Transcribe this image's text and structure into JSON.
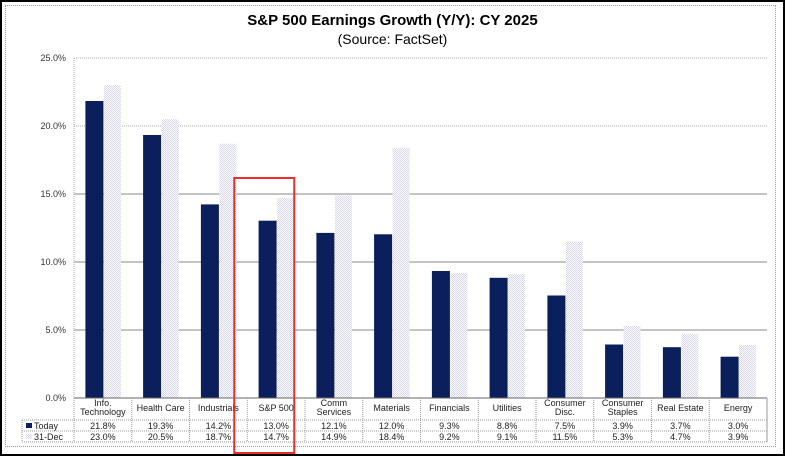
{
  "chart_data": {
    "type": "bar",
    "title": "S&P 500 Earnings Growth (Y/Y): CY 2025",
    "subtitle": "(Source: FactSet)",
    "xlabel": "",
    "ylabel": "",
    "ylim": [
      0,
      25
    ],
    "yticks": [
      "0.0%",
      "5.0%",
      "10.0%",
      "15.0%",
      "20.0%",
      "25.0%"
    ],
    "ytick_values": [
      0,
      5,
      10,
      15,
      20,
      25
    ],
    "grid": true,
    "legend_placement": "data-table-left",
    "categories": [
      [
        "Info.",
        "Technology"
      ],
      [
        "Health Care"
      ],
      [
        "Industrials"
      ],
      [
        "S&P 500"
      ],
      [
        "Comm",
        "Services"
      ],
      [
        "Materials"
      ],
      [
        "Financials"
      ],
      [
        "Utilities"
      ],
      [
        "Consumer",
        "Disc."
      ],
      [
        "Consumer",
        "Staples"
      ],
      [
        "Real Estate"
      ],
      [
        "Energy"
      ]
    ],
    "series": [
      {
        "name": "Today",
        "color": "#0a1f5c",
        "values": [
          21.8,
          19.3,
          14.2,
          13.0,
          12.1,
          12.0,
          9.3,
          8.8,
          7.5,
          3.9,
          3.7,
          3.0
        ],
        "labels": [
          "21.8%",
          "19.3%",
          "14.2%",
          "13.0%",
          "12.1%",
          "12.0%",
          "9.3%",
          "8.8%",
          "7.5%",
          "3.9%",
          "3.7%",
          "3.0%"
        ]
      },
      {
        "name": "31-Dec",
        "color": "#e4e4f6",
        "values": [
          23.0,
          20.5,
          18.7,
          14.7,
          14.9,
          18.4,
          9.2,
          9.1,
          11.5,
          5.3,
          4.7,
          3.9
        ],
        "labels": [
          "23.0%",
          "20.5%",
          "18.7%",
          "14.7%",
          "14.9%",
          "18.4%",
          "9.2%",
          "9.1%",
          "11.5%",
          "5.3%",
          "4.7%",
          "3.9%"
        ]
      }
    ],
    "highlight": {
      "category_index": 3,
      "color": "#e8302a"
    }
  }
}
